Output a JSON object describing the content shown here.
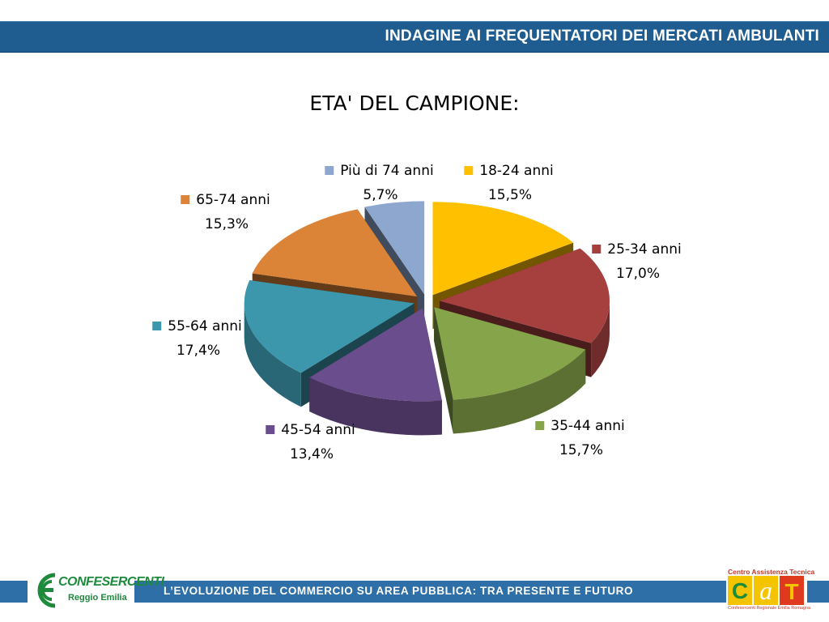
{
  "header": {
    "title": "INDAGINE AI FREQUENTATORI DEI MERCATI AMBULANTI"
  },
  "footer": {
    "text": "L’EVOLUZIONE DEL COMMERCIO SU AREA PUBBLICA: TRA PRESENTE E FUTURO"
  },
  "logos": {
    "left": {
      "name": "CONFESERCENTI",
      "sub": "Reggio Emilia"
    },
    "right": {
      "top": "Centro Assistenza Tecnica",
      "letters": "CAT",
      "bottom": "Confesercenti Regionale Emilia Romagna"
    }
  },
  "colors": {
    "band": "#1f5c8f",
    "footer_band": "#2d6fa6"
  },
  "chart_data": {
    "type": "pie",
    "title": "ETA' DEL CAMPIONE:",
    "style": "3d-exploded",
    "categories": [
      "18-24 anni",
      "25-34 anni",
      "35-44 anni",
      "45-54 anni",
      "55-64 anni",
      "65-74 anni",
      "Più di 74 anni"
    ],
    "values": [
      15.5,
      17.0,
      15.7,
      13.4,
      17.4,
      15.3,
      5.7
    ],
    "value_labels": [
      "15,5%",
      "17,0%",
      "15,7%",
      "13,4%",
      "17,4%",
      "15,3%",
      "5,7%"
    ],
    "colors": [
      "#ffc000",
      "#a5403f",
      "#86a54a",
      "#6a4d8c",
      "#3c97ad",
      "#db8437",
      "#8ea7cf"
    ]
  }
}
